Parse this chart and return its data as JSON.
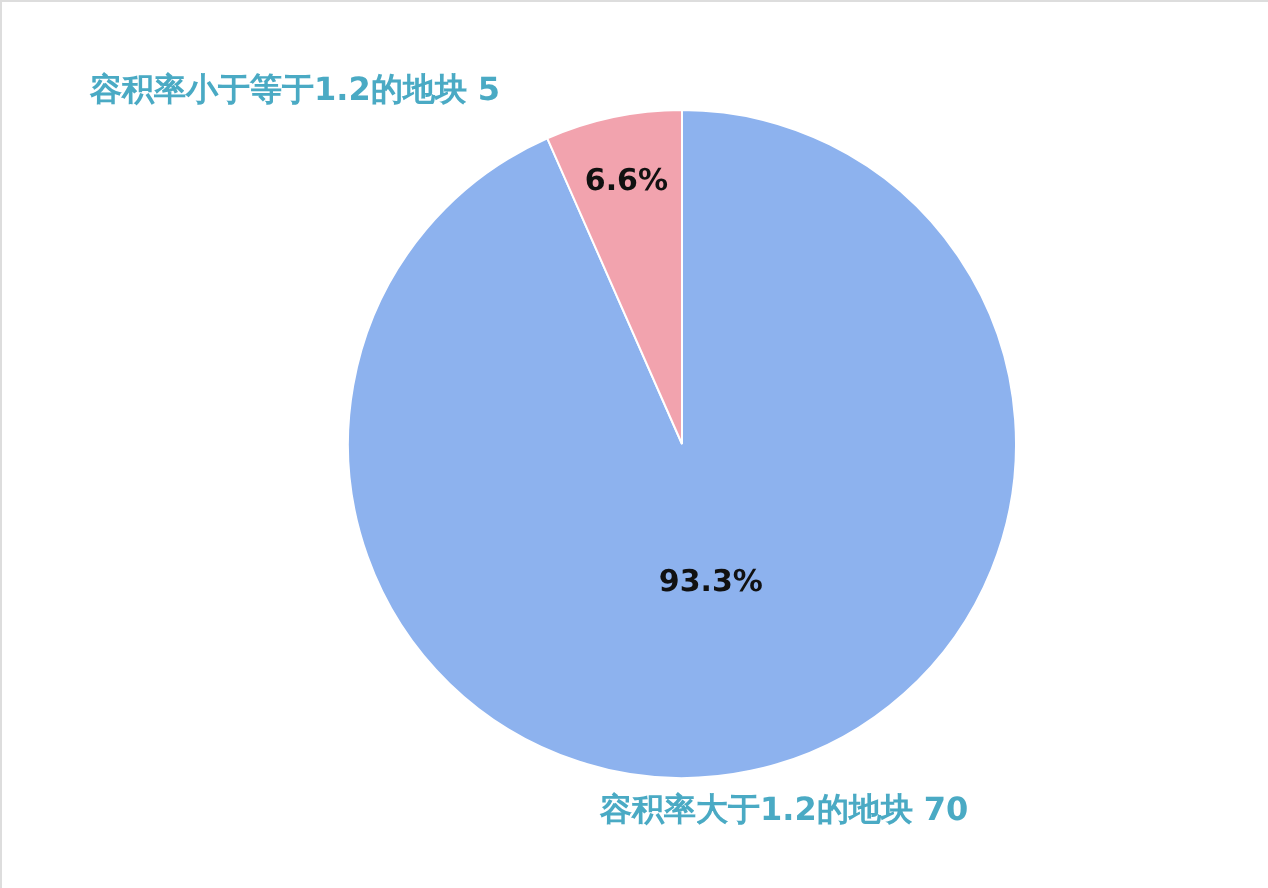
{
  "chart_data": {
    "type": "pie",
    "categories": [
      "容积率大于1.2的地块 70",
      "容积率小于等于1.2的地块 5"
    ],
    "values": [
      93.3,
      6.6
    ],
    "colors": [
      "#8db2ee",
      "#f2a3ae"
    ],
    "value_labels": [
      "93.3%",
      "6.6%"
    ]
  }
}
